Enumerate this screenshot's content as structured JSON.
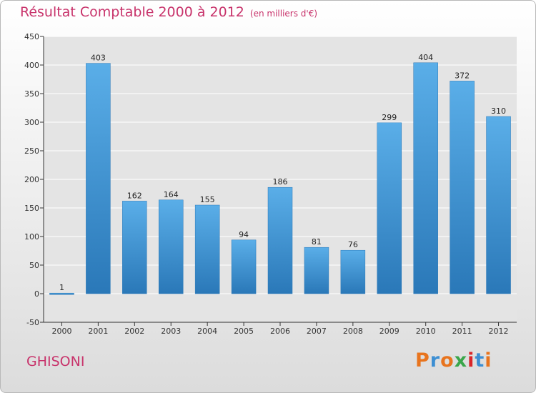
{
  "chart_data": {
    "type": "bar",
    "title": "Résultat Comptable 2000 à 2012",
    "subtitle": "(en milliers d'€)",
    "categories": [
      "2000",
      "2001",
      "2002",
      "2003",
      "2004",
      "2005",
      "2006",
      "2007",
      "2008",
      "2009",
      "2010",
      "2011",
      "2012"
    ],
    "values": [
      1,
      403,
      162,
      164,
      155,
      94,
      186,
      81,
      76,
      299,
      404,
      372,
      310
    ],
    "ylim": [
      -50,
      450
    ],
    "yticks": [
      -50,
      0,
      50,
      100,
      150,
      200,
      250,
      300,
      350,
      400,
      450
    ],
    "grid": true,
    "bar_color": "#3d8fd3"
  },
  "location": "GHISONI",
  "logo": {
    "text": "Proxiti",
    "colors": [
      "#e8741e",
      "#3d8fd3",
      "#e8741e",
      "#3aa64a",
      "#d9262a",
      "#3d8fd3",
      "#e8741e"
    ]
  }
}
